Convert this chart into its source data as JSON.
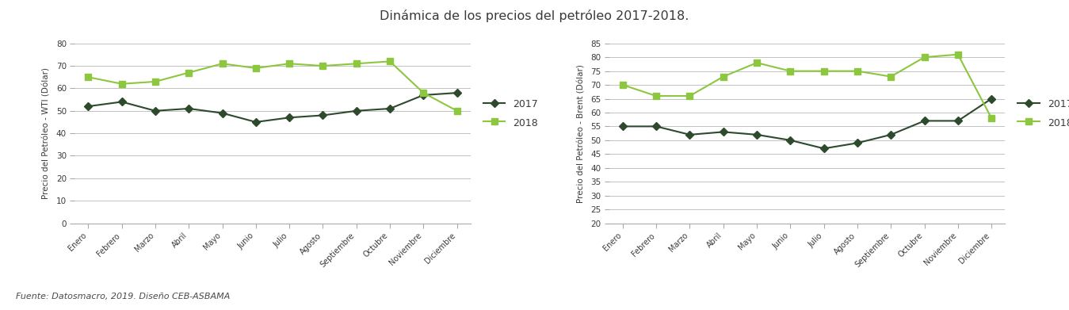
{
  "title": "Dinámica de los precios del petróleo 2017-2018.",
  "title_fontsize": 11.5,
  "title_color": "#3a3a3a",
  "months": [
    "Enero",
    "Febrero",
    "Marzo",
    "Abril",
    "Mayo",
    "Junio",
    "Julio",
    "Agosto",
    "Septiembre",
    "Octubre",
    "Noviembre",
    "Diciembre"
  ],
  "wti_2017": [
    52,
    54,
    50,
    51,
    49,
    45,
    47,
    48,
    50,
    51,
    57,
    58
  ],
  "wti_2018": [
    65,
    62,
    63,
    67,
    71,
    69,
    71,
    70,
    71,
    72,
    58,
    50
  ],
  "brent_2017": [
    55,
    55,
    52,
    53,
    52,
    50,
    47,
    49,
    52,
    57,
    57,
    65
  ],
  "brent_2018": [
    70,
    66,
    66,
    73,
    78,
    75,
    75,
    75,
    73,
    80,
    81,
    58
  ],
  "color_2017": "#2d4a2d",
  "color_2018": "#8dc63f",
  "ylabel_wti": "Precio del Petróleo - WTI (Dólar)",
  "ylabel_brent": "Precio del Petróleo - Brent (Dólar)",
  "legend_2017": "2017",
  "legend_2018": "2018",
  "wti_ylim": [
    0,
    80
  ],
  "wti_yticks": [
    0,
    10,
    20,
    30,
    40,
    50,
    60,
    70,
    80
  ],
  "brent_ylim": [
    20,
    85
  ],
  "brent_yticks": [
    20,
    25,
    30,
    35,
    40,
    45,
    50,
    55,
    60,
    65,
    70,
    75,
    80,
    85
  ],
  "source_text": "Fuente: Datosmacro, 2019. Diseño CEB-ASBAMA",
  "source_fontsize": 8,
  "source_color": "#4a4a4a",
  "background_color": "#ffffff",
  "tick_color": "#aaaaaa",
  "spine_color": "#aaaaaa",
  "marker_2017": "D",
  "marker_2018": "s",
  "linewidth": 1.5,
  "markersize": 5.5
}
